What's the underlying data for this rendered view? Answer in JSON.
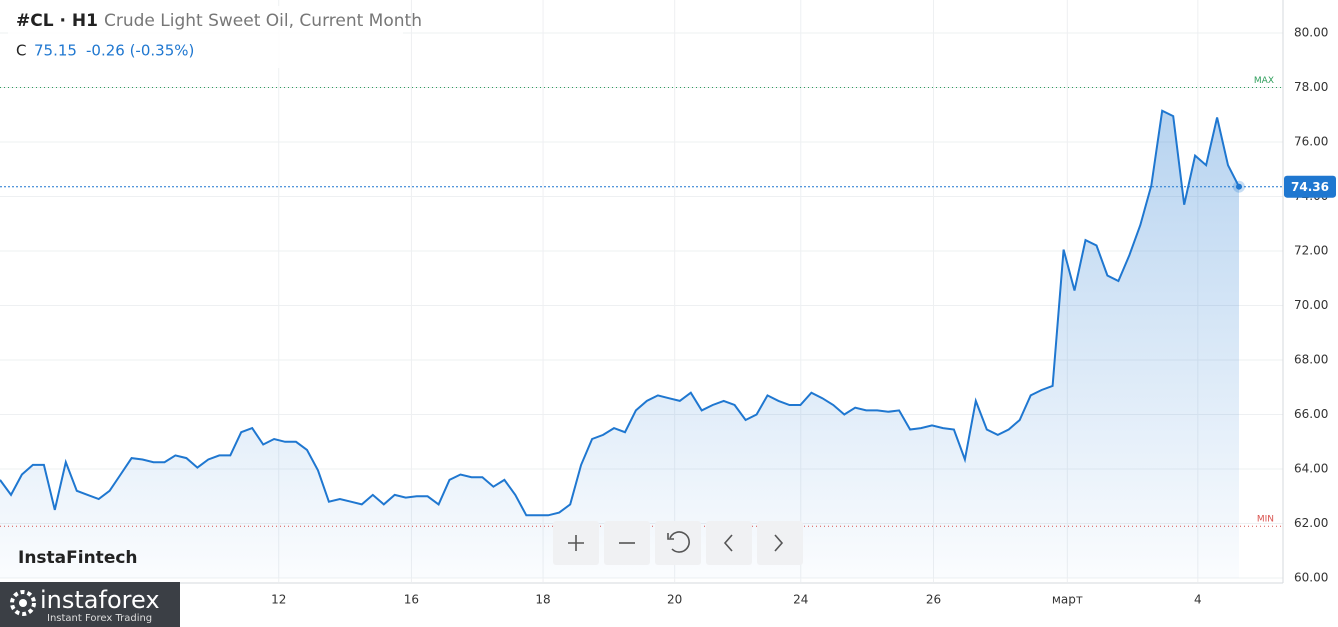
{
  "header": {
    "symbol": "#CL · H1",
    "description": "Crude Light Sweet Oil, Current Month",
    "price_prefix": "C",
    "change": "-0.26 (-0.35%)"
  },
  "branding": {
    "chart_brand": "InstaFintech",
    "logo": "instaforex",
    "logo_tagline": "Instant Forex Trading"
  },
  "chart_data": {
    "type": "line",
    "color": "#1f77d0",
    "values": [
      63.6,
      63.05,
      63.8,
      64.15,
      64.15,
      62.5,
      64.25,
      63.2,
      63.05,
      62.9,
      63.2,
      63.8,
      64.4,
      64.35,
      64.25,
      64.25,
      64.5,
      64.4,
      64.05,
      64.35,
      64.5,
      64.5,
      65.35,
      65.5,
      64.9,
      65.1,
      65.0,
      65.0,
      64.7,
      63.95,
      62.8,
      62.9,
      62.8,
      62.7,
      63.05,
      62.7,
      63.05,
      62.95,
      63.0,
      63.0,
      62.7,
      63.6,
      63.8,
      63.7,
      63.7,
      63.35,
      63.6,
      63.05,
      62.3,
      62.3,
      62.3,
      62.4,
      62.7,
      64.15,
      65.1,
      65.25,
      65.5,
      65.35,
      66.15,
      66.5,
      66.7,
      66.6,
      66.5,
      66.8,
      66.15,
      66.35,
      66.5,
      66.35,
      65.8,
      66.0,
      66.7,
      66.5,
      66.35,
      66.35,
      66.8,
      66.6,
      66.35,
      66.0,
      66.25,
      66.15,
      66.15,
      66.1,
      66.15,
      65.45,
      65.5,
      65.6,
      65.5,
      65.45,
      64.35,
      66.5,
      65.45,
      65.25,
      65.45,
      65.8,
      66.7,
      66.9,
      67.05,
      72.05,
      70.55,
      72.4,
      72.2,
      71.1,
      70.9,
      71.85,
      72.95,
      74.4,
      77.15,
      76.95,
      73.7,
      75.5,
      75.15,
      76.9,
      75.15,
      74.36
    ],
    "xlim": [
      0,
      116
    ],
    "xticks": [
      {
        "value": 25.2,
        "label": "12"
      },
      {
        "value": 37.2,
        "label": "16"
      },
      {
        "value": 49.1,
        "label": "18"
      },
      {
        "value": 61.0,
        "label": "20"
      },
      {
        "value": 72.4,
        "label": "24"
      },
      {
        "value": 84.4,
        "label": "26"
      },
      {
        "value": 96.5,
        "label": "март"
      },
      {
        "value": 108.3,
        "label": "4"
      }
    ],
    "ylim": [
      60,
      80
    ],
    "yticks": [
      {
        "value": 60,
        "label": "60.00"
      },
      {
        "value": 62,
        "label": "62.00"
      },
      {
        "value": 64,
        "label": "64.00"
      },
      {
        "value": 66,
        "label": "66.00"
      },
      {
        "value": 68,
        "label": "68.00"
      },
      {
        "value": 70,
        "label": "70.00"
      },
      {
        "value": 72,
        "label": "72.00"
      },
      {
        "value": 74,
        "label": "74.00"
      },
      {
        "value": 76,
        "label": "76.00"
      },
      {
        "value": 78,
        "label": "78.00"
      },
      {
        "value": 80,
        "label": "80.00"
      }
    ],
    "grid": true,
    "reference_lines": [
      {
        "label": "MAX",
        "value": 78,
        "color": "#2e9e5b"
      },
      {
        "label": "MIN",
        "value": 61.9,
        "color": "#d9534f"
      }
    ]
  }
}
